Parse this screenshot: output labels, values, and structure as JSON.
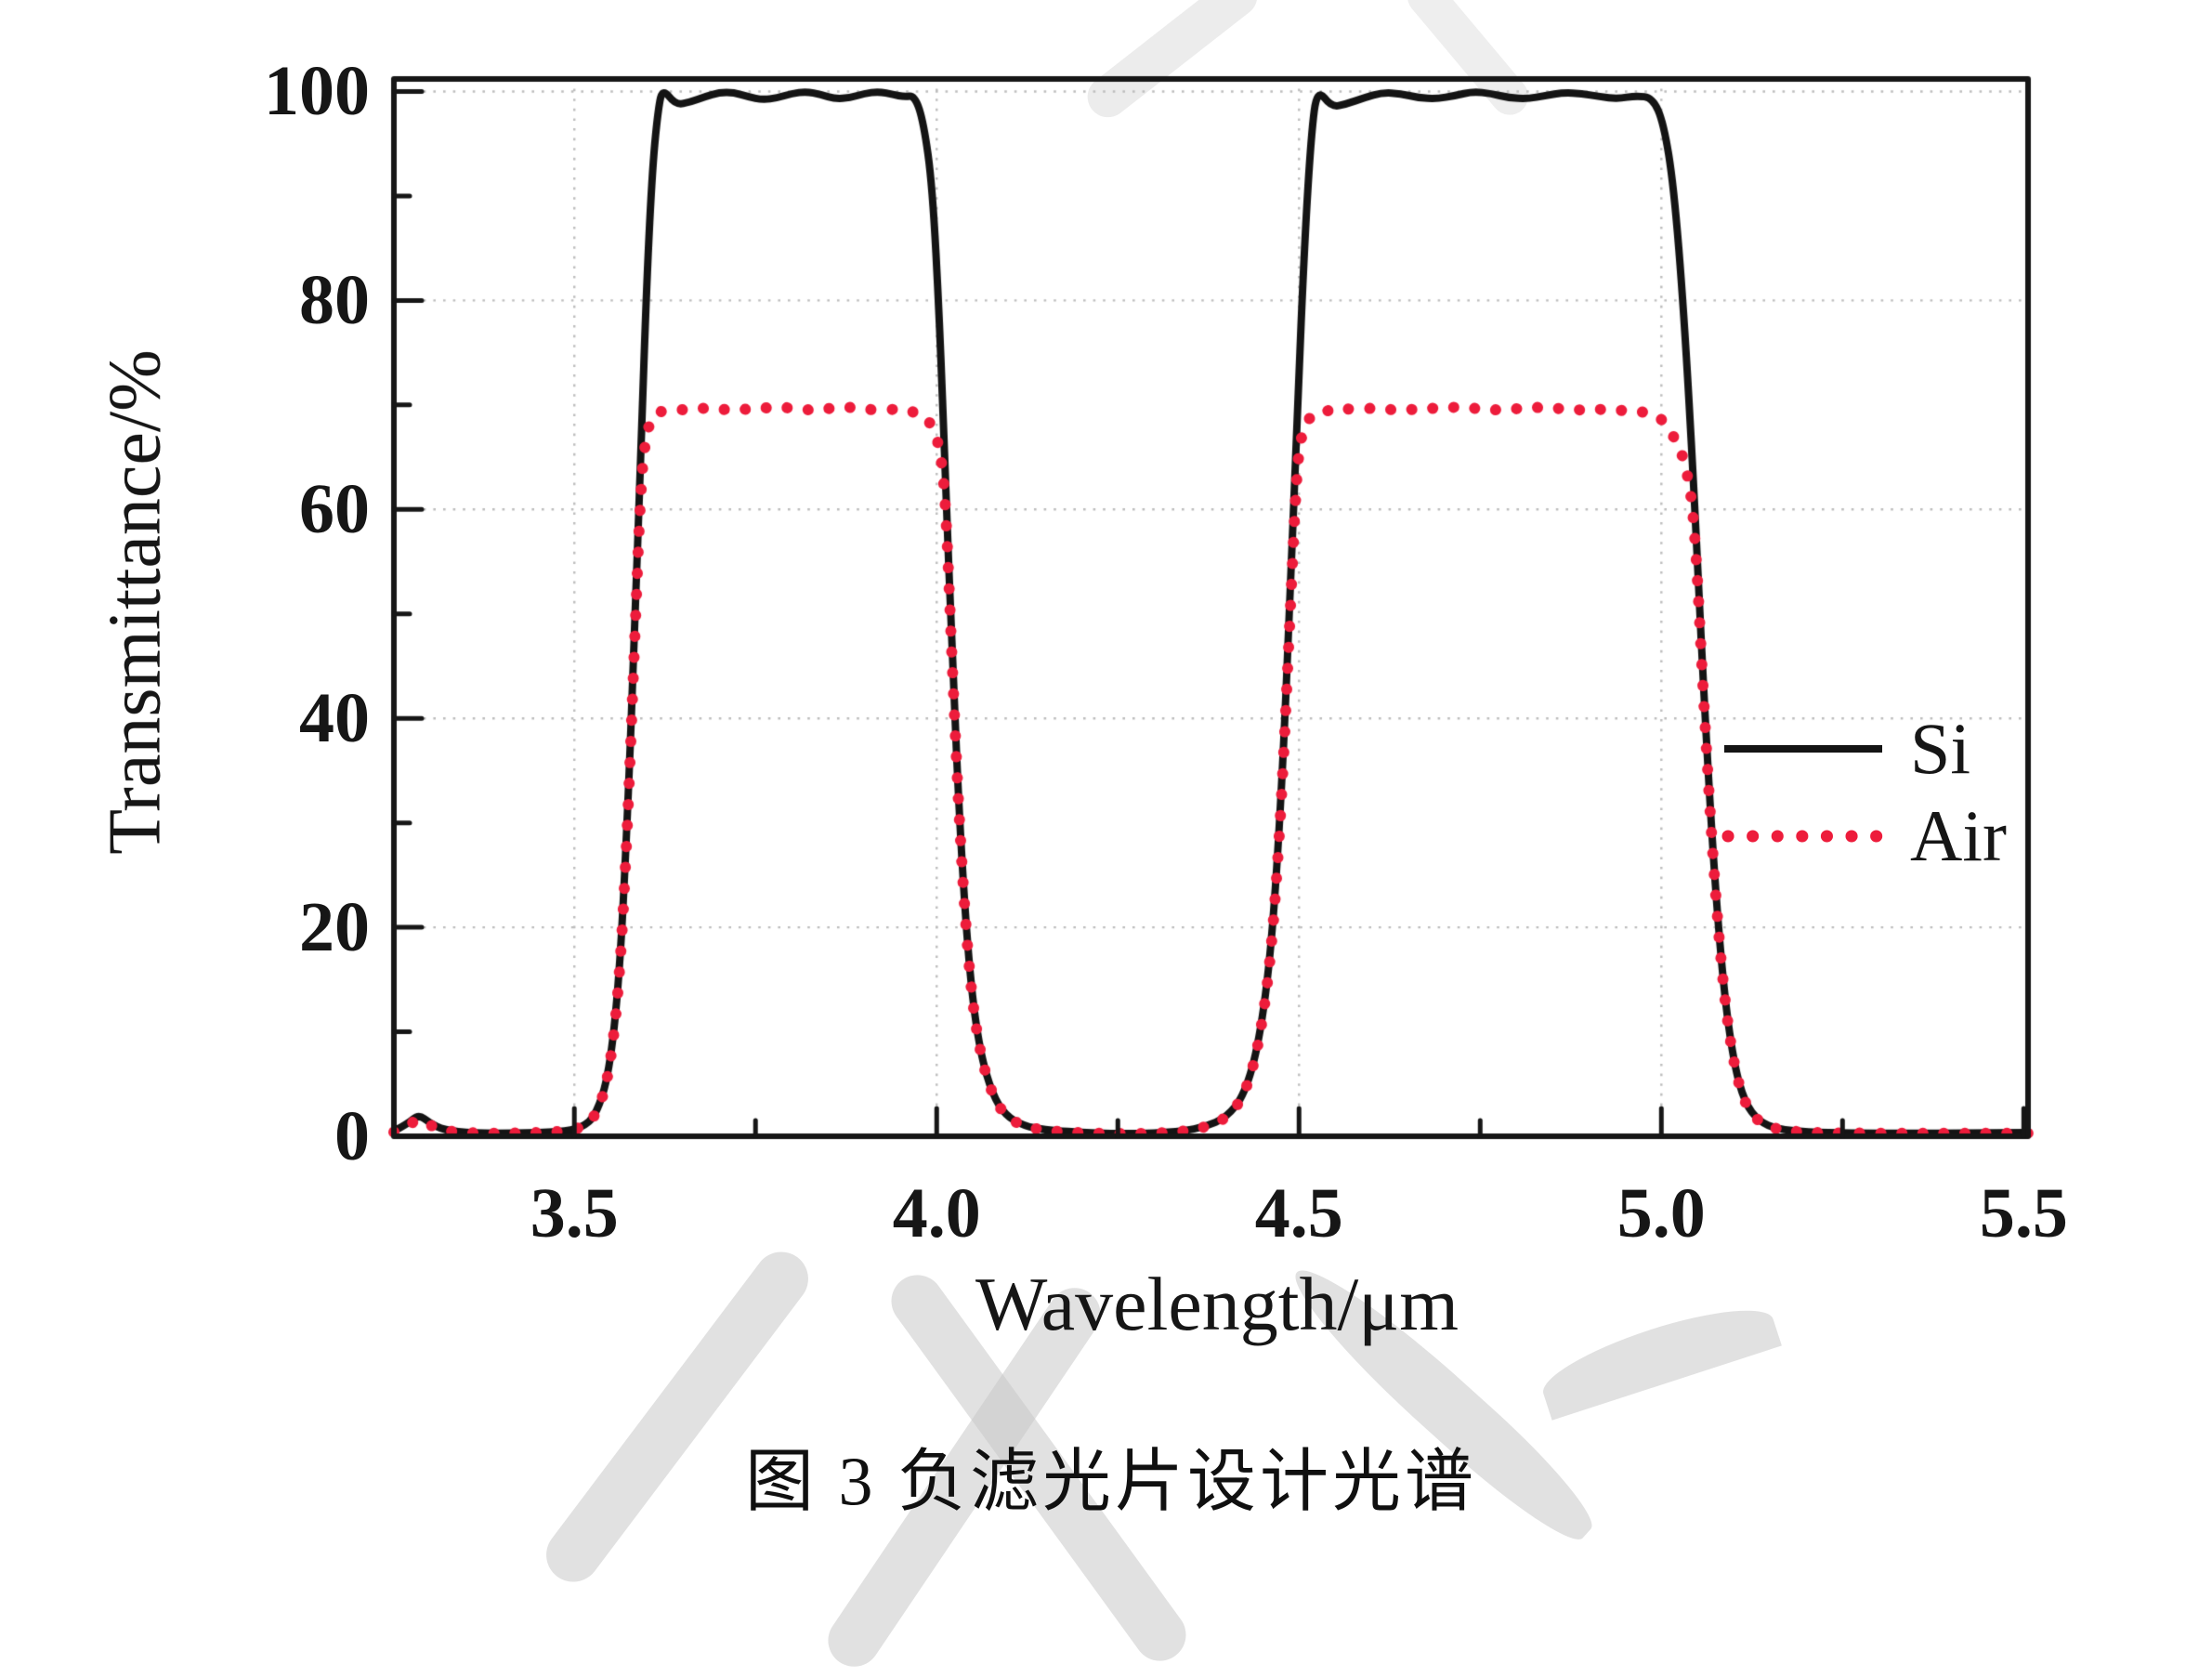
{
  "figure": {
    "caption": "图 3 负滤光片设计光谱"
  },
  "colors": {
    "axis": "#161616",
    "si_line": "#141414",
    "air_line": "#ed1c3b",
    "grid": "#bdbdbd",
    "watermark": "#c8c8c8"
  },
  "chart_data": {
    "type": "line",
    "title": "",
    "xlabel": "Wavelength/μm",
    "ylabel": "Transmittance/%",
    "xlim": [
      3.251,
      5.506
    ],
    "ylim": [
      0,
      101.2
    ],
    "grid": {
      "style": "dotted",
      "x_lines": [
        3.5,
        4.0,
        4.5,
        5.0
      ],
      "y_lines": [
        20,
        40,
        60,
        80,
        100
      ]
    },
    "x_ticks_major": [
      3.5,
      4.0,
      4.5,
      5.0,
      5.5
    ],
    "x_tick_labels": [
      "3.5",
      "4.0",
      "4.5",
      "5.0",
      "5.5"
    ],
    "x_ticks_minor": [
      3.75,
      4.25,
      4.75,
      5.25
    ],
    "y_ticks_major": [
      0,
      20,
      40,
      60,
      80,
      100
    ],
    "y_tick_labels": [
      "0",
      "20",
      "40",
      "60",
      "80",
      "100"
    ],
    "y_ticks_minor": [
      10,
      30,
      50,
      70,
      90
    ],
    "legend": {
      "position": "right-middle",
      "entries": [
        {
          "label": "Si",
          "style": "solid",
          "color": "#141414"
        },
        {
          "label": "Air",
          "style": "dotted",
          "color": "#ed1c3b"
        }
      ]
    },
    "x": [
      3.251,
      3.27,
      3.285,
      3.3,
      3.32,
      3.36,
      3.42,
      3.48,
      3.51,
      3.53,
      3.548,
      3.562,
      3.573,
      3.583,
      3.592,
      3.6,
      3.608,
      3.616,
      3.622,
      3.64,
      3.66,
      3.68,
      3.7,
      3.72,
      3.74,
      3.76,
      3.78,
      3.8,
      3.82,
      3.84,
      3.86,
      3.88,
      3.9,
      3.92,
      3.94,
      3.955,
      3.97,
      3.982,
      3.994,
      4.004,
      4.012,
      4.022,
      4.033,
      4.046,
      4.06,
      4.077,
      4.095,
      4.12,
      4.15,
      4.18,
      4.22,
      4.26,
      4.3,
      4.34,
      4.37,
      4.4,
      4.425,
      4.445,
      4.462,
      4.476,
      4.488,
      4.498,
      4.508,
      4.517,
      4.525,
      4.545,
      4.565,
      4.59,
      4.615,
      4.64,
      4.665,
      4.69,
      4.715,
      4.74,
      4.765,
      4.79,
      4.815,
      4.84,
      4.865,
      4.89,
      4.915,
      4.94,
      4.965,
      4.988,
      5.003,
      5.017,
      5.031,
      5.045,
      5.058,
      5.072,
      5.086,
      5.1,
      5.115,
      5.135,
      5.16,
      5.2,
      5.26,
      5.34,
      5.42,
      5.506
    ],
    "series": [
      {
        "name": "Si",
        "values": [
          0.5,
          1.2,
          2.1,
          1.3,
          0.6,
          0.3,
          0.3,
          0.4,
          0.8,
          2.0,
          6,
          15,
          30,
          48,
          66,
          82,
          93,
          98.5,
          100.3,
          98.7,
          99.0,
          99.5,
          99.9,
          99.9,
          99.5,
          99.2,
          99.4,
          99.8,
          100.0,
          99.7,
          99.3,
          99.4,
          99.8,
          100.0,
          99.7,
          99.5,
          99.6,
          97.0,
          91.0,
          78.0,
          63.0,
          45.0,
          28.0,
          15.0,
          8.0,
          4.0,
          2.0,
          1.0,
          0.6,
          0.45,
          0.3,
          0.25,
          0.3,
          0.5,
          0.9,
          1.8,
          4,
          9,
          18,
          33,
          52,
          70,
          86,
          96,
          100.3,
          98.5,
          98.8,
          99.4,
          99.9,
          99.8,
          99.4,
          99.3,
          99.6,
          100.0,
          99.8,
          99.4,
          99.3,
          99.6,
          99.9,
          99.8,
          99.5,
          99.3,
          99.6,
          99.4,
          97,
          91,
          79,
          62,
          43,
          26,
          14,
          7,
          3.2,
          1.4,
          0.7,
          0.4,
          0.3,
          0.3,
          0.3,
          0.35
        ]
      },
      {
        "name": "Air",
        "values": [
          0.4,
          1.0,
          1.7,
          1.1,
          0.5,
          0.3,
          0.3,
          0.4,
          0.8,
          1.9,
          5.8,
          14.5,
          29,
          47,
          63,
          67.5,
          68.8,
          69.3,
          69.4,
          69.5,
          69.6,
          69.7,
          69.6,
          69.5,
          69.6,
          69.7,
          69.8,
          69.7,
          69.5,
          69.6,
          69.7,
          69.8,
          69.6,
          69.5,
          69.6,
          69.5,
          69.3,
          69.0,
          68.0,
          66.0,
          61.5,
          44.0,
          27.5,
          14.6,
          7.8,
          3.9,
          1.9,
          0.95,
          0.55,
          0.4,
          0.3,
          0.25,
          0.3,
          0.45,
          0.85,
          1.7,
          3.9,
          8.8,
          17.5,
          32,
          50.5,
          65.5,
          68.0,
          69.0,
          69.3,
          69.5,
          69.6,
          69.7,
          69.6,
          69.5,
          69.6,
          69.7,
          69.8,
          69.7,
          69.5,
          69.6,
          69.7,
          69.8,
          69.6,
          69.5,
          69.6,
          69.5,
          69.4,
          69.2,
          68.5,
          67.0,
          65.0,
          60,
          42,
          25.5,
          13.7,
          6.8,
          3.1,
          1.3,
          0.65,
          0.35,
          0.3,
          0.3,
          0.3,
          0.3
        ]
      }
    ]
  }
}
